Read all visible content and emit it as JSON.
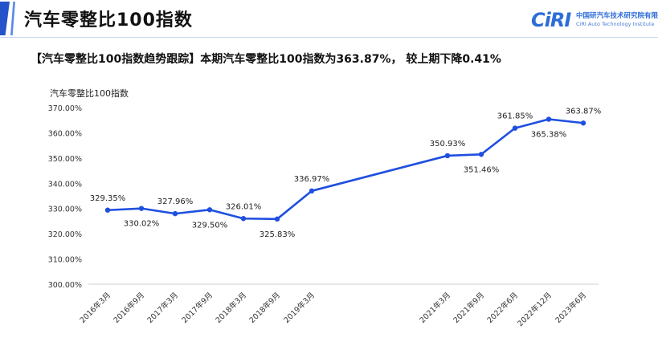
{
  "header": {
    "title": "汽车零整比100指数",
    "logo_mark": "CiRI",
    "logo_cn": "中国研汽车技术研究院有限公司",
    "logo_en": "CiRI Auto Technology Institute"
  },
  "subtitle": "【汽车零整比100指数趋势跟踪】本期汽车零整比100指数为363.87%， 较上期下降0.41%",
  "colors": {
    "line": "#1f4fe0",
    "accent": "#2553c9",
    "text": "#111111"
  },
  "chart_data": {
    "type": "line",
    "ylabel": "汽车零整比100指数",
    "ylim": [
      300,
      370
    ],
    "yticks": [
      "300.00%",
      "310.00%",
      "320.00%",
      "330.00%",
      "340.00%",
      "350.00%",
      "360.00%",
      "370.00%"
    ],
    "categories": [
      "2016年3月",
      "2016年9月",
      "2017年3月",
      "2017年9月",
      "2018年3月",
      "2018年9月",
      "2019年3月",
      "2021年3月",
      "2021年9月",
      "2022年6月",
      "2022年12月",
      "2023年6月"
    ],
    "values": [
      329.35,
      330.02,
      327.96,
      329.5,
      326.01,
      325.83,
      336.97,
      350.93,
      351.46,
      361.85,
      365.38,
      363.87
    ],
    "value_labels": [
      "329.35%",
      "330.02%",
      "327.96%",
      "329.50%",
      "326.01%",
      "325.83%",
      "336.97%",
      "350.93%",
      "351.46%",
      "361.85%",
      "365.38%",
      "363.87%"
    ],
    "grid": false,
    "legend": "none"
  }
}
